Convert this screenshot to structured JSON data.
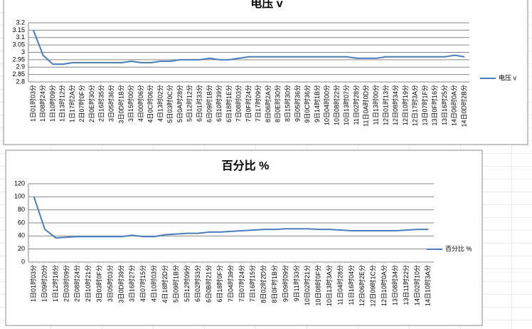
{
  "chart_data": [
    {
      "type": "line",
      "title": "电压 v",
      "grid": true,
      "legend": "right",
      "categories": [
        "1日01时03分",
        "1日08时24分",
        "1日10时09分",
        "1日13时12分",
        "1日17时2A分",
        "2日07时0F分",
        "2日0E时30分",
        "2日16时35分",
        "3日05时36分",
        "3日0D时1B分",
        "3日15时00分",
        "4日00时06分",
        "4日0C时06分",
        "4日13时02分",
        "5日03时0C分",
        "5日0A时28分",
        "5日12时12分",
        "6日01时33分",
        "6日09时1B分",
        "6日10时39分",
        "6日18时1E分",
        "7日08时03分",
        "7日0F时24分",
        "7日17时09分",
        "8日06时2A分",
        "8日0E时30分",
        "8日15时30分",
        "9日05时36分",
        "9日0C时36分",
        "9日14时1B分",
        "10日04时00分",
        "10日08时22分",
        "10日13时07分",
        "11日02时28分",
        "11日0A时0D分",
        "11日13时00分",
        "12日01时13分",
        "12日08时34分",
        "12日10时19分",
        "12日17时3A分",
        "13日07时1F分",
        "13日0F时16分",
        "13日16时25分",
        "14日06时0A分",
        "14日0D时2B分"
      ],
      "series": [
        {
          "name": "电压 v",
          "color": "#4a7ebb",
          "values": [
            3.15,
            2.98,
            2.92,
            2.92,
            2.93,
            2.93,
            2.93,
            2.93,
            2.93,
            2.93,
            2.94,
            2.93,
            2.93,
            2.94,
            2.94,
            2.95,
            2.95,
            2.95,
            2.96,
            2.95,
            2.95,
            2.96,
            2.97,
            2.97,
            2.97,
            2.97,
            2.97,
            2.97,
            2.97,
            2.97,
            2.97,
            2.97,
            2.97,
            2.96,
            2.96,
            2.96,
            2.97,
            2.97,
            2.97,
            2.97,
            2.97,
            2.97,
            2.97,
            2.98,
            2.97
          ]
        }
      ],
      "ylim": [
        2.8,
        3.2
      ],
      "yticks": [
        2.8,
        2.85,
        2.9,
        2.95,
        3,
        3.05,
        3.1,
        3.15,
        3.2
      ]
    },
    {
      "type": "line",
      "title": "百分比 %",
      "grid": true,
      "legend": "right",
      "categories": [
        "1日01时03分",
        "1日09时20分",
        "1日12时18分",
        "2日03时09分",
        "2日08时24分",
        "2日10时21分",
        "3日03时0F分",
        "3日05时03分",
        "3日0D时39分",
        "3日16时27分",
        "4日07时15分",
        "4日10时03分",
        "4日18时2D分",
        "5日09时1B分",
        "5日12时09分",
        "6日02时33分",
        "6日0B时21分",
        "6日18时0F分",
        "7日04时39分",
        "7日07时24分",
        "7日16时15分",
        "8日02时2D分",
        "8日0F时1B分",
        "9日09时09分",
        "9日11时33分",
        "10日02时21分",
        "10日08时0F分",
        "10日13时3A分",
        "11日04时28分",
        "11日16时04分",
        "12日06时2E分",
        "12日09时1C分",
        "12日10时0A分",
        "13日08时34分",
        "13日11时22分",
        "14日02时10分",
        "14日10时3A分"
      ],
      "series": [
        {
          "name": "百分比 %",
          "color": "#4a7ebb",
          "values": [
            100,
            50,
            37,
            38,
            39,
            39,
            39,
            39,
            39,
            41,
            39,
            39,
            42,
            43,
            44,
            44,
            46,
            46,
            47,
            48,
            49,
            50,
            50,
            51,
            51,
            51,
            50,
            50,
            49,
            48,
            48,
            48,
            48,
            48,
            49,
            50,
            50
          ]
        }
      ],
      "ylim": [
        0,
        120
      ],
      "yticks": [
        0,
        20,
        40,
        60,
        80,
        100,
        120
      ]
    }
  ]
}
